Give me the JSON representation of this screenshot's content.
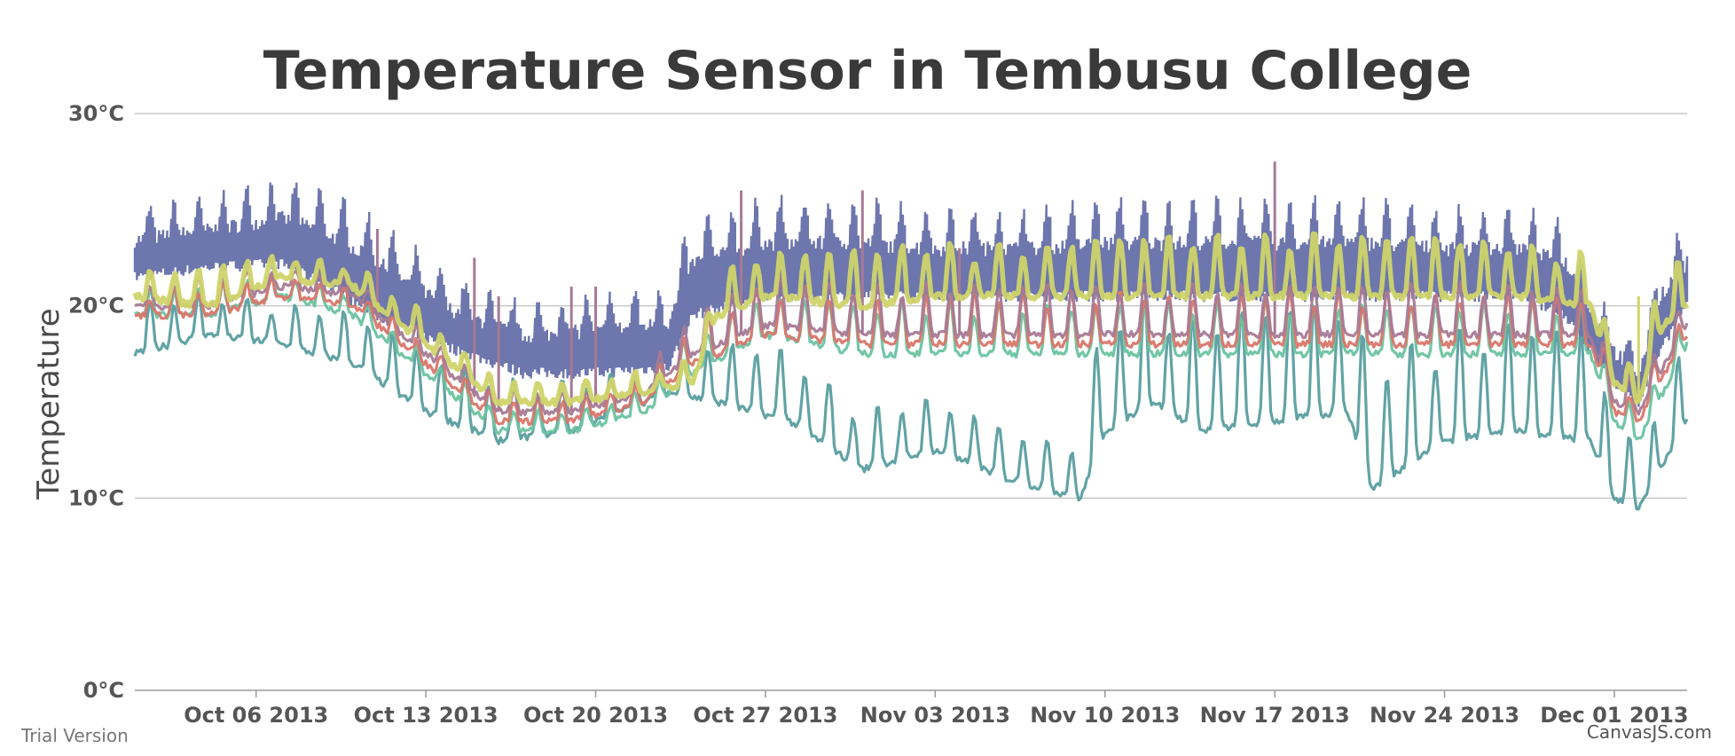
{
  "chart_data": {
    "type": "line",
    "title": "Temperature Sensor in Tembusu College",
    "xlabel": "",
    "ylabel": "Temperature",
    "x_range": [
      "2013-10-01",
      "2013-12-04"
    ],
    "ylim": [
      0,
      30
    ],
    "y_ticks": [
      0,
      10,
      20,
      30
    ],
    "y_tick_labels": [
      "0°C",
      "10°C",
      "20°C",
      "30°C"
    ],
    "x_ticks": [
      "2013-10-06",
      "2013-10-13",
      "2013-10-20",
      "2013-10-27",
      "2013-11-03",
      "2013-11-10",
      "2013-11-17",
      "2013-11-24",
      "2013-12-01"
    ],
    "x_tick_labels": [
      "Oct 06 2013",
      "Oct 13 2013",
      "Oct 20 2013",
      "Oct 27 2013",
      "Nov 03 2013",
      "Nov 10 2013",
      "Nov 17 2013",
      "Nov 24 2013",
      "Dec 01 2013"
    ],
    "grid": true,
    "legend": "none",
    "watermark_left": "Trial Version",
    "watermark_right": "CanvasJS.com",
    "series": [
      {
        "color": "#6d76ad",
        "style": "dense daily band",
        "x": [
          "2013-10-01",
          "2013-10-04",
          "2013-10-07",
          "2013-10-09",
          "2013-10-11",
          "2013-10-14",
          "2013-10-17",
          "2013-10-20",
          "2013-10-23",
          "2013-10-24",
          "2013-10-27",
          "2013-10-31",
          "2013-11-03",
          "2013-11-07",
          "2013-11-10",
          "2013-11-14",
          "2013-11-17",
          "2013-11-21",
          "2013-11-24",
          "2013-11-27",
          "2013-11-29",
          "2013-12-01",
          "2013-12-02",
          "2013-12-03",
          "2013-12-04"
        ],
        "low": [
          21.5,
          22.0,
          22.2,
          21.0,
          19.5,
          17.8,
          16.5,
          16.5,
          16.8,
          19.5,
          20.5,
          20.5,
          20.5,
          20.5,
          20.5,
          20.5,
          20.5,
          20.5,
          20.5,
          20.5,
          19.5,
          16.0,
          15.0,
          18.0,
          20.0
        ],
        "high": [
          25.0,
          25.5,
          26.5,
          26.0,
          24.5,
          21.5,
          20.0,
          20.5,
          21.0,
          24.5,
          25.5,
          25.5,
          25.0,
          25.0,
          25.5,
          25.5,
          25.5,
          25.5,
          25.0,
          25.0,
          24.5,
          19.0,
          17.5,
          23.0,
          24.0
        ]
      },
      {
        "color": "#5a9ea0",
        "x": [
          "2013-10-01",
          "2013-10-04",
          "2013-10-07",
          "2013-10-10",
          "2013-10-13",
          "2013-10-16",
          "2013-10-19",
          "2013-10-23",
          "2013-10-25",
          "2013-10-28",
          "2013-10-31",
          "2013-11-03",
          "2013-11-06",
          "2013-11-09",
          "2013-11-10",
          "2013-11-12",
          "2013-11-14",
          "2013-11-17",
          "2013-11-20",
          "2013-11-21",
          "2013-11-24",
          "2013-11-27",
          "2013-11-30",
          "2013-12-01",
          "2013-12-02",
          "2013-12-04"
        ],
        "y": [
          17.5,
          18.5,
          18.0,
          17.0,
          14.5,
          13.0,
          13.5,
          15.5,
          15.0,
          14.0,
          11.5,
          12.5,
          11.0,
          10.0,
          13.5,
          15.0,
          13.5,
          14.0,
          14.5,
          10.5,
          13.0,
          13.5,
          13.0,
          10.0,
          9.5,
          14.0
        ],
        "y_peak": [
          20.0,
          20.5,
          20.0,
          19.5,
          17.5,
          16.0,
          16.0,
          17.0,
          18.0,
          17.5,
          14.5,
          15.0,
          13.5,
          12.5,
          20.0,
          20.0,
          19.0,
          20.0,
          20.0,
          17.0,
          18.5,
          19.0,
          18.5,
          14.0,
          12.5,
          18.0
        ]
      },
      {
        "color": "#6cc3a0",
        "x": [
          "2013-10-01",
          "2013-10-04",
          "2013-10-07",
          "2013-10-10",
          "2013-10-13",
          "2013-10-16",
          "2013-10-19",
          "2013-10-22",
          "2013-10-24",
          "2013-10-27",
          "2013-10-31",
          "2013-11-03",
          "2013-11-07",
          "2013-11-10",
          "2013-11-14",
          "2013-11-17",
          "2013-11-21",
          "2013-11-24",
          "2013-11-27",
          "2013-11-30",
          "2013-12-01",
          "2013-12-02",
          "2013-12-04"
        ],
        "y": [
          19.5,
          19.5,
          20.5,
          19.5,
          16.5,
          13.5,
          13.5,
          14.5,
          16.5,
          18.5,
          17.5,
          17.5,
          17.5,
          17.5,
          17.5,
          17.5,
          17.5,
          17.5,
          17.5,
          17.5,
          14.0,
          13.0,
          18.0
        ],
        "y_peak": [
          20.5,
          21.0,
          21.5,
          20.5,
          17.5,
          14.5,
          14.5,
          15.5,
          18.5,
          20.5,
          20.0,
          20.0,
          20.0,
          20.0,
          20.0,
          20.0,
          20.0,
          20.0,
          20.0,
          20.0,
          15.5,
          14.5,
          19.5
        ]
      },
      {
        "color": "#d9766a",
        "x": [
          "2013-10-01",
          "2013-10-04",
          "2013-10-07",
          "2013-10-10",
          "2013-10-13",
          "2013-10-16",
          "2013-10-19",
          "2013-10-22",
          "2013-10-24",
          "2013-10-27",
          "2013-10-31",
          "2013-11-03",
          "2013-11-07",
          "2013-11-10",
          "2013-11-14",
          "2013-11-17",
          "2013-11-21",
          "2013-11-24",
          "2013-11-27",
          "2013-11-30",
          "2013-12-01",
          "2013-12-02",
          "2013-12-04"
        ],
        "y": [
          19.5,
          19.5,
          20.5,
          20.0,
          17.0,
          14.0,
          14.0,
          15.0,
          17.0,
          18.5,
          18.0,
          18.0,
          18.0,
          18.0,
          18.0,
          18.0,
          18.0,
          18.0,
          18.0,
          18.0,
          14.5,
          14.0,
          18.5
        ],
        "y_peak": [
          20.5,
          21.0,
          21.5,
          21.0,
          18.0,
          15.0,
          15.0,
          16.0,
          19.0,
          21.0,
          20.5,
          20.5,
          20.5,
          20.5,
          20.5,
          20.5,
          20.5,
          20.5,
          20.5,
          20.5,
          16.0,
          15.5,
          20.0
        ]
      },
      {
        "color": "#a77a95",
        "x": [
          "2013-10-01",
          "2013-10-04",
          "2013-10-07",
          "2013-10-10",
          "2013-10-13",
          "2013-10-16",
          "2013-10-19",
          "2013-10-22",
          "2013-10-24",
          "2013-10-27",
          "2013-10-31",
          "2013-11-03",
          "2013-11-07",
          "2013-11-10",
          "2013-11-14",
          "2013-11-17",
          "2013-11-21",
          "2013-11-24",
          "2013-11-27",
          "2013-11-30",
          "2013-12-01",
          "2013-12-02",
          "2013-12-04"
        ],
        "y": [
          20.0,
          20.0,
          21.0,
          20.5,
          17.5,
          14.5,
          14.5,
          15.5,
          17.5,
          19.0,
          18.5,
          18.5,
          18.5,
          18.5,
          18.5,
          18.5,
          18.5,
          18.5,
          18.5,
          18.5,
          15.0,
          14.5,
          19.0
        ],
        "y_peak": [
          21.0,
          21.5,
          22.0,
          21.5,
          18.5,
          15.5,
          15.5,
          16.5,
          19.5,
          21.5,
          21.0,
          21.0,
          21.0,
          21.0,
          21.0,
          21.0,
          21.0,
          21.0,
          21.0,
          21.0,
          16.5,
          16.0,
          20.5
        ],
        "spikes": [
          {
            "x": "2013-10-11",
            "y": 24.0
          },
          {
            "x": "2013-10-15",
            "y": 22.5
          },
          {
            "x": "2013-10-16",
            "y": 20.5
          },
          {
            "x": "2013-10-19",
            "y": 21.0
          },
          {
            "x": "2013-10-20",
            "y": 21.0
          },
          {
            "x": "2013-10-26",
            "y": 26.0
          },
          {
            "x": "2013-10-31",
            "y": 26.0
          },
          {
            "x": "2013-11-04",
            "y": 23.0
          },
          {
            "x": "2013-11-17",
            "y": 27.5
          }
        ]
      },
      {
        "color": "#cfd46a",
        "style": "thick",
        "x": [
          "2013-10-01",
          "2013-10-04",
          "2013-10-07",
          "2013-10-10",
          "2013-10-13",
          "2013-10-16",
          "2013-10-19",
          "2013-10-22",
          "2013-10-24",
          "2013-10-25",
          "2013-10-27",
          "2013-10-31",
          "2013-11-03",
          "2013-11-07",
          "2013-11-10",
          "2013-11-14",
          "2013-11-17",
          "2013-11-21",
          "2013-11-24",
          "2013-11-27",
          "2013-11-30",
          "2013-12-01",
          "2013-12-02",
          "2013-12-03",
          "2013-12-04"
        ],
        "y": [
          20.5,
          20.0,
          21.5,
          21.0,
          18.0,
          15.0,
          15.0,
          15.5,
          16.0,
          19.5,
          20.5,
          20.0,
          20.5,
          20.5,
          20.5,
          20.5,
          20.5,
          20.5,
          20.5,
          20.5,
          20.0,
          16.0,
          15.0,
          19.0,
          20.0
        ],
        "y_peak": [
          21.5,
          22.0,
          22.5,
          22.0,
          19.5,
          16.0,
          16.0,
          16.5,
          17.0,
          21.5,
          22.5,
          23.0,
          23.0,
          23.0,
          23.5,
          23.5,
          23.5,
          23.5,
          23.5,
          23.0,
          22.5,
          17.5,
          16.5,
          22.5,
          22.0
        ],
        "spikes": [
          {
            "x": "2013-12-02",
            "y": 20.5
          }
        ]
      }
    ]
  }
}
